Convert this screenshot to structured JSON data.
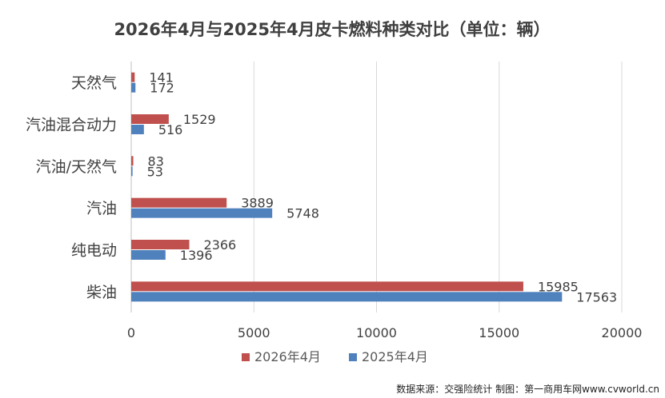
{
  "chart_data": {
    "type": "bar",
    "orientation": "horizontal",
    "title": "2026年4月与2025年4月皮卡燃料种类对比（单位：辆）",
    "categories": [
      "天然气",
      "汽油混合动力",
      "汽油/天然气",
      "汽油",
      "纯电动",
      "柴油"
    ],
    "series": [
      {
        "name": "2026年4月",
        "color": "#c0504d",
        "values": [
          141,
          1529,
          83,
          3889,
          2366,
          15985
        ]
      },
      {
        "name": "2025年4月",
        "color": "#4f81bd",
        "values": [
          172,
          516,
          53,
          5748,
          1396,
          17563
        ]
      }
    ],
    "xlim": [
      0,
      20000
    ],
    "xticks": [
      0,
      5000,
      10000,
      15000,
      20000
    ],
    "grid": true,
    "legend_position": "bottom",
    "source_note": "数据来源：交强险统计 制图：第一商用车网www.cvworld.cn"
  }
}
